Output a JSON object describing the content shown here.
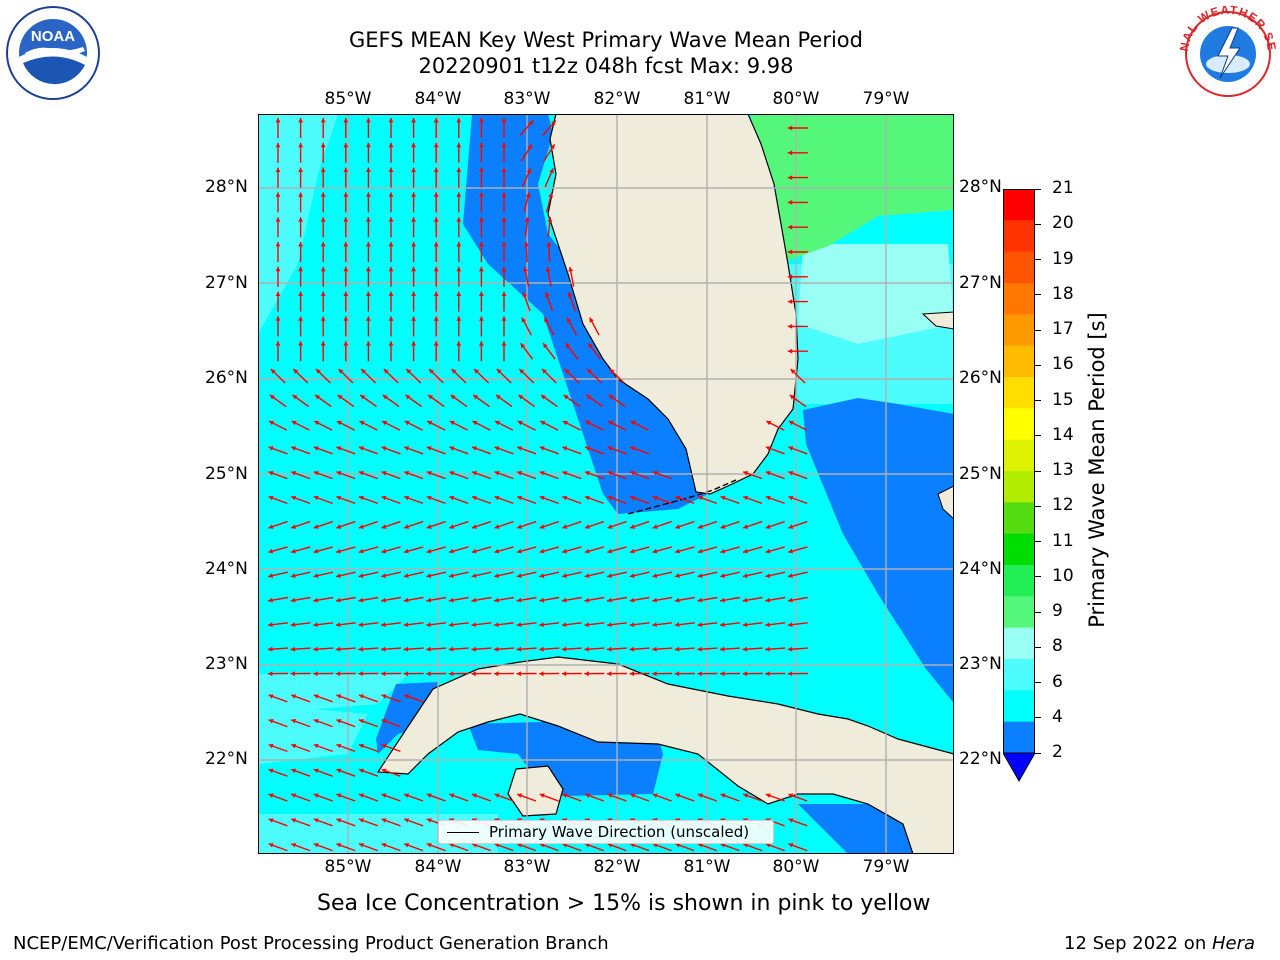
{
  "header": {
    "title_line1": "GEFS MEAN Key West Primary Wave Mean Period",
    "title_line2": "20220901 t12z 048h fcst   Max: 9.98"
  },
  "logos": {
    "noaa_text": "NOAA",
    "nws_text": "NATIONAL WEATHER SERVICE"
  },
  "map": {
    "lon_labels": [
      "85°W",
      "84°W",
      "83°W",
      "82°W",
      "81°W",
      "80°W",
      "79°W"
    ],
    "lat_labels": [
      "28°N",
      "27°N",
      "26°N",
      "25°N",
      "24°N",
      "23°N",
      "22°N"
    ],
    "legend_label": "Primary Wave Direction (unscaled)",
    "colors": {
      "band_2_4": "#0a7fff",
      "band_4_6": "#00ffff",
      "band_6_8": "#4dfdfd",
      "band_8_9": "#99fff5",
      "band_9_10": "#55f77a",
      "land": "#efecdc",
      "arrows": "#ff0000",
      "grid": "#b0b0b0"
    }
  },
  "colorbar": {
    "title": "Primary Wave Mean Period [s]",
    "ticks": [
      "21",
      "20",
      "19",
      "18",
      "17",
      "16",
      "15",
      "14",
      "13",
      "12",
      "11",
      "10",
      "9",
      "8",
      "6",
      "4",
      "2"
    ],
    "colors_top_to_bottom": [
      "#ff0000",
      "#ff3300",
      "#ff5500",
      "#ff7700",
      "#ff9900",
      "#ffbb00",
      "#ffdd00",
      "#ffff00",
      "#ddf200",
      "#b2ed00",
      "#55dd11",
      "#00dd00",
      "#22ee55",
      "#55f77a",
      "#99fff5",
      "#4dfdfd",
      "#00ffff",
      "#0a7fff"
    ],
    "under_color": "#0000ff"
  },
  "note": "Sea Ice Concentration > 15% is shown in pink to yellow",
  "footer": {
    "left": "NCEP/EMC/Verification Post Processing Product Generation Branch",
    "right_prefix": "12 Sep 2022 on ",
    "right_host": "Hera"
  }
}
